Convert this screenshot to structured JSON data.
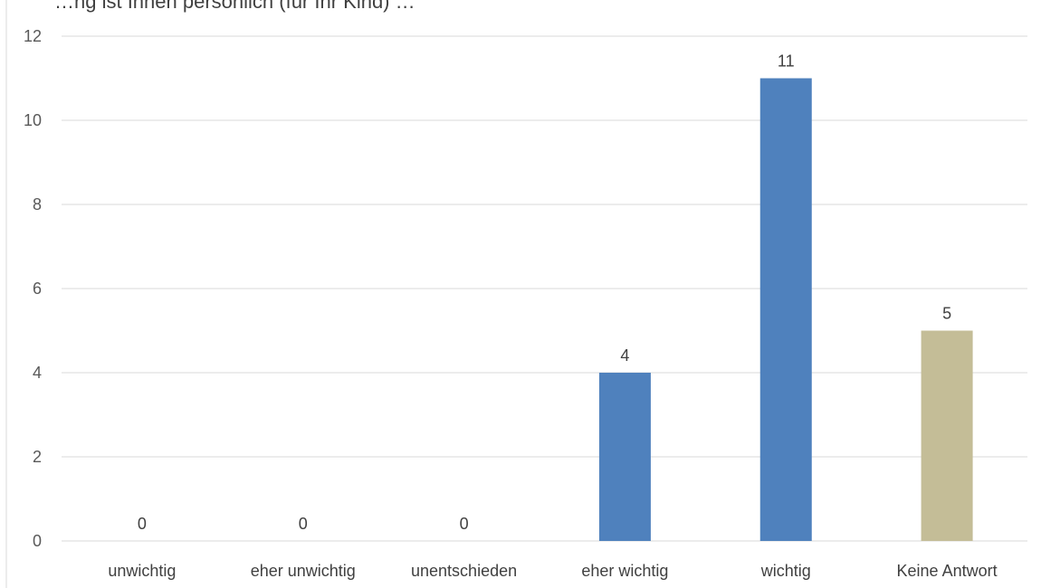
{
  "chart_data": {
    "type": "bar",
    "title": "…ng ist Ihnen persönlich (für Ihr Kind) …",
    "categories": [
      "unwichtig",
      "eher unwichtig",
      "unentschieden",
      "eher wichtig",
      "wichtig",
      "Keine Antwort"
    ],
    "values": [
      0,
      0,
      0,
      4,
      11,
      5
    ],
    "data_labels": [
      "0",
      "0",
      "0",
      "4",
      "11",
      "5"
    ],
    "bar_colors": [
      "#4F81BD",
      "#4F81BD",
      "#4F81BD",
      "#4F81BD",
      "#4F81BD",
      "#C4BD97"
    ],
    "xlabel": "",
    "ylabel": "",
    "ylim": [
      0,
      12
    ],
    "yticks": [
      0,
      2,
      4,
      6,
      8,
      10,
      12
    ],
    "grid": true,
    "gridline_color": "#D9D9D9",
    "legend": false
  }
}
